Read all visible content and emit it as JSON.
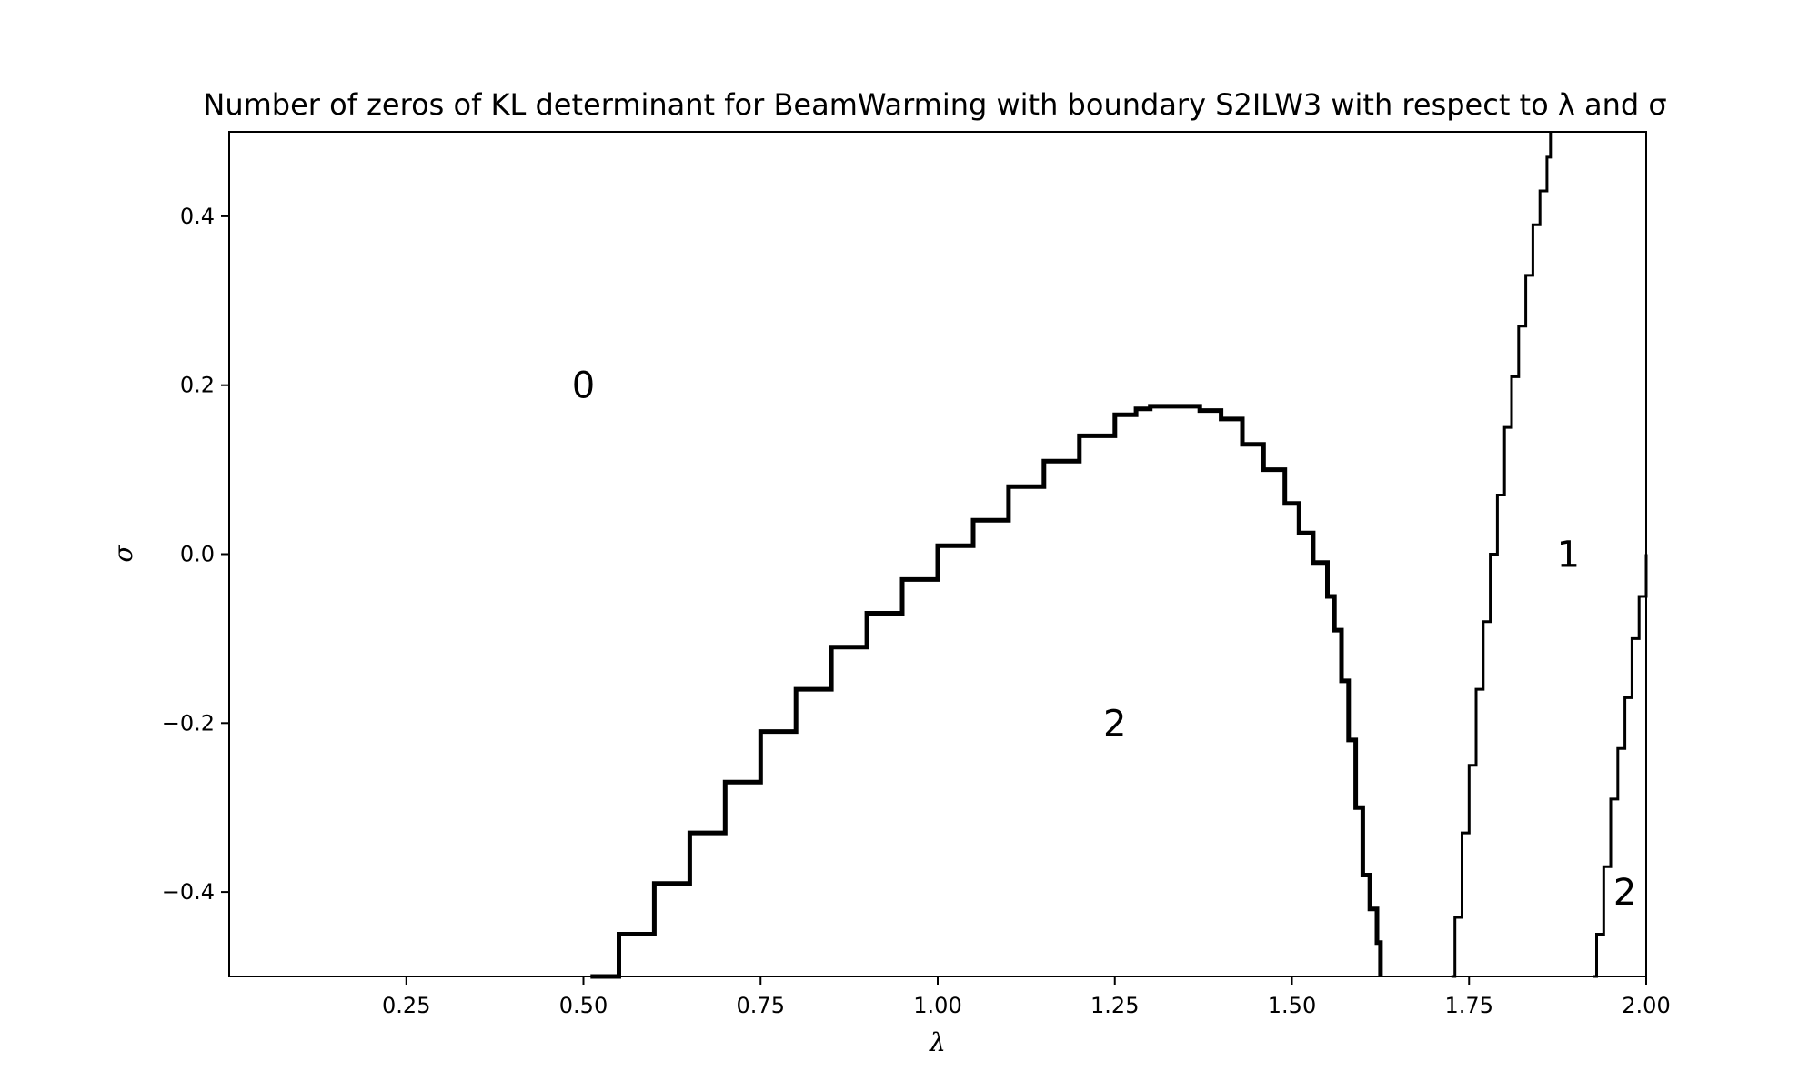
{
  "chart_data": {
    "type": "line",
    "title": "Number of zeros of KL determinant for BeamWarming with boundary S2ILW3 with respect to λ and σ",
    "xlabel": "λ",
    "ylabel": "σ",
    "xlim": [
      0.0,
      2.0
    ],
    "ylim": [
      -0.5,
      0.5
    ],
    "x_ticks": [
      0.25,
      0.5,
      0.75,
      1.0,
      1.25,
      1.5,
      1.75,
      2.0
    ],
    "x_tick_labels": [
      "0.25",
      "0.50",
      "0.75",
      "1.00",
      "1.25",
      "1.50",
      "1.75",
      "2.00"
    ],
    "y_ticks": [
      -0.4,
      -0.2,
      0.0,
      0.2,
      0.4
    ],
    "y_tick_labels": [
      "−0.4",
      "−0.2",
      "0.0",
      "0.2",
      "0.4"
    ],
    "grid": false,
    "series": [
      {
        "color": "#000000",
        "style": "thick",
        "x": [
          0.51,
          0.55,
          0.6,
          0.65,
          0.7,
          0.75,
          0.8,
          0.85,
          0.9,
          0.95,
          1.0,
          1.05,
          1.1,
          1.15,
          1.2,
          1.25,
          1.28,
          1.3,
          1.33,
          1.35,
          1.37,
          1.4,
          1.43,
          1.46,
          1.49,
          1.51,
          1.53,
          1.55,
          1.56,
          1.57,
          1.58,
          1.59,
          1.6,
          1.61,
          1.62,
          1.625
        ],
        "y": [
          -0.5,
          -0.45,
          -0.39,
          -0.33,
          -0.27,
          -0.21,
          -0.16,
          -0.11,
          -0.07,
          -0.03,
          0.01,
          0.04,
          0.08,
          0.11,
          0.14,
          0.165,
          0.172,
          0.175,
          0.175,
          0.175,
          0.17,
          0.16,
          0.13,
          0.1,
          0.06,
          0.025,
          -0.01,
          -0.05,
          -0.09,
          -0.15,
          -0.22,
          -0.3,
          -0.38,
          -0.42,
          -0.46,
          -0.5
        ]
      },
      {
        "color": "#000000",
        "style": "thin",
        "x": [
          1.725,
          1.73,
          1.74,
          1.75,
          1.76,
          1.77,
          1.78,
          1.79,
          1.8,
          1.81,
          1.82,
          1.83,
          1.84,
          1.85,
          1.86,
          1.865
        ],
        "y": [
          -0.5,
          -0.43,
          -0.33,
          -0.25,
          -0.16,
          -0.08,
          0.0,
          0.07,
          0.15,
          0.21,
          0.27,
          0.33,
          0.39,
          0.43,
          0.47,
          0.5
        ]
      },
      {
        "color": "#000000",
        "style": "thin",
        "x": [
          1.925,
          1.93,
          1.94,
          1.95,
          1.96,
          1.97,
          1.98,
          1.99,
          2.0
        ],
        "y": [
          -0.5,
          -0.45,
          -0.37,
          -0.29,
          -0.23,
          -0.17,
          -0.1,
          -0.05,
          0.0
        ]
      }
    ],
    "annotations": [
      {
        "text": "0",
        "x": 0.5,
        "y": 0.2
      },
      {
        "text": "2",
        "x": 1.25,
        "y": -0.2
      },
      {
        "text": "1",
        "x": 1.89,
        "y": 0.0
      },
      {
        "text": "2",
        "x": 1.97,
        "y": -0.4
      }
    ]
  }
}
